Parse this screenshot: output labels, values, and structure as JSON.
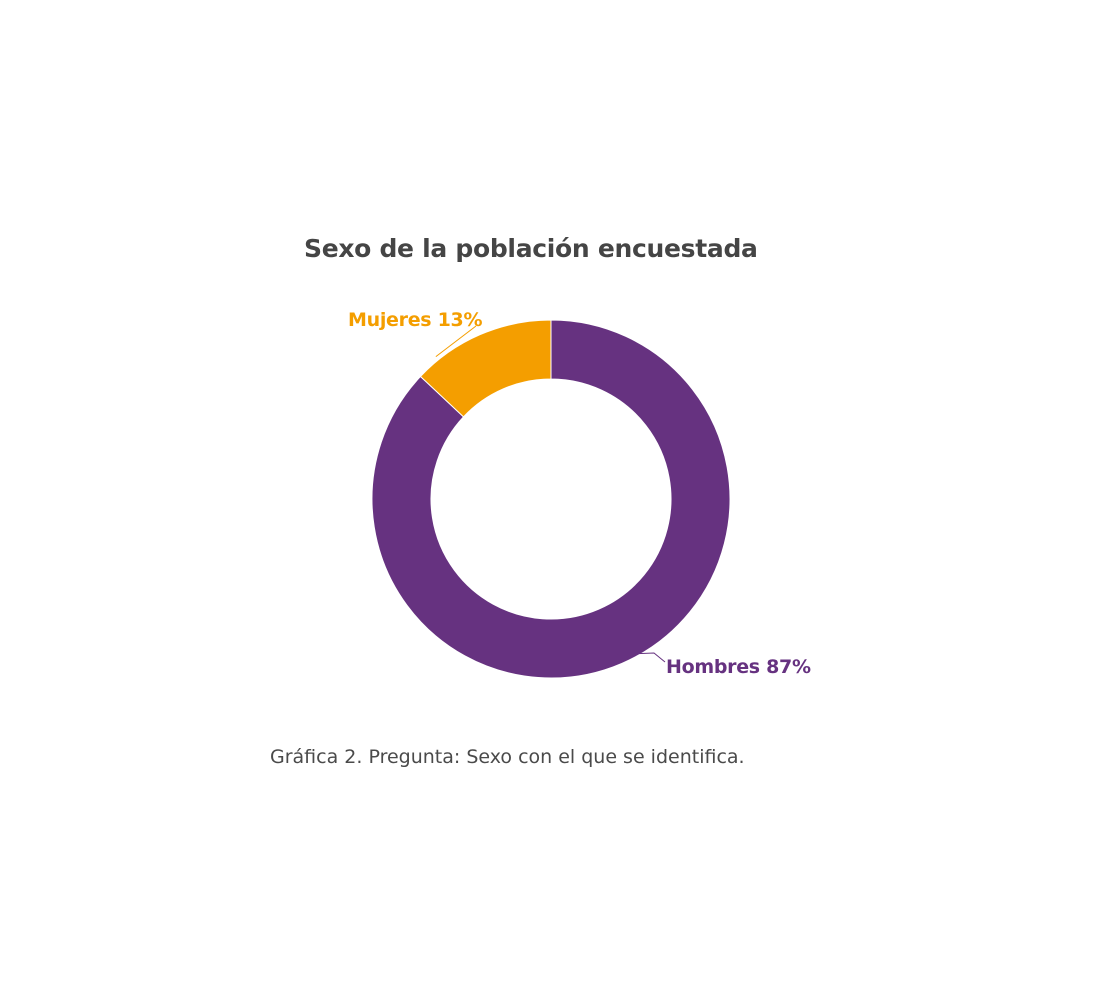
{
  "chart_data": {
    "type": "pie",
    "variant": "donut",
    "title": "Sexo de la población encuestada",
    "slices": [
      {
        "name": "Hombres",
        "value": 87,
        "label": "Hombres 87%",
        "color": "#663280"
      },
      {
        "name": "Mujeres",
        "value": 13,
        "label": "Mujeres 13%",
        "color": "#f49e00"
      }
    ]
  },
  "caption": "Gráfica 2. Pregunta: Sexo con el que se identifica."
}
